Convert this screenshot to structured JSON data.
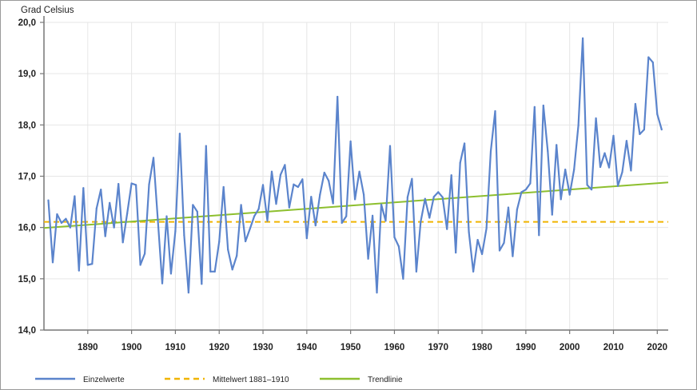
{
  "chart_data": {
    "type": "line",
    "title": "",
    "ylabel": "Grad Celsius",
    "xlabel": "",
    "xlim": [
      1880,
      2022.5
    ],
    "ylim": [
      14,
      20
    ],
    "x_ticks": [
      1890,
      1900,
      1910,
      1920,
      1930,
      1940,
      1950,
      1960,
      1970,
      1980,
      1990,
      2000,
      2010,
      2020
    ],
    "x_tick_labels": [
      "1890",
      "1900",
      "1910",
      "1920",
      "1930",
      "1940",
      "1950",
      "1960",
      "1970",
      "1980",
      "1990",
      "2000",
      "2010",
      "2020"
    ],
    "y_ticks": [
      14,
      15,
      16,
      17,
      18,
      19,
      20
    ],
    "y_tick_labels": [
      "14,0",
      "15,0",
      "16,0",
      "17,0",
      "18,0",
      "19,0",
      "20,0"
    ],
    "grid": true,
    "legend_position": "bottom",
    "series": [
      {
        "name": "Einzelwerte",
        "color": "#5b84cc",
        "style": "solid",
        "x_start": 1881,
        "x_end": 2021,
        "values": [
          16.53,
          15.32,
          16.26,
          16.09,
          16.17,
          16.0,
          16.61,
          15.16,
          16.77,
          15.27,
          15.29,
          16.37,
          16.74,
          15.83,
          16.48,
          16.0,
          16.85,
          15.71,
          16.27,
          16.86,
          16.83,
          15.27,
          15.49,
          16.84,
          17.36,
          16.14,
          14.91,
          16.22,
          15.1,
          15.93,
          17.83,
          15.85,
          14.73,
          16.44,
          16.31,
          14.9,
          17.59,
          15.14,
          15.14,
          15.72,
          16.79,
          15.57,
          15.18,
          15.45,
          16.44,
          15.73,
          15.97,
          16.22,
          16.36,
          16.83,
          16.13,
          17.09,
          16.46,
          17.03,
          17.22,
          16.39,
          16.84,
          16.79,
          16.94,
          15.79,
          16.6,
          16.04,
          16.64,
          17.07,
          16.91,
          16.47,
          18.55,
          16.09,
          16.22,
          17.68,
          16.55,
          17.09,
          16.64,
          15.39,
          16.23,
          14.73,
          16.45,
          16.13,
          17.59,
          15.81,
          15.63,
          15.0,
          16.59,
          16.95,
          15.14,
          16.11,
          16.56,
          16.19,
          16.6,
          16.69,
          16.59,
          15.97,
          17.02,
          15.51,
          17.26,
          17.64,
          15.91,
          15.14,
          15.76,
          15.48,
          15.98,
          17.49,
          18.27,
          15.55,
          15.7,
          16.39,
          15.44,
          16.35,
          16.69,
          16.74,
          16.86,
          18.35,
          15.85,
          18.38,
          17.49,
          16.25,
          17.61,
          16.55,
          17.13,
          16.64,
          17.13,
          17.99,
          19.69,
          16.83,
          16.74,
          18.13,
          17.18,
          17.45,
          17.17,
          17.79,
          16.81,
          17.08,
          17.69,
          17.11,
          18.41,
          17.82,
          17.91,
          19.32,
          19.22,
          18.21,
          17.91
        ]
      },
      {
        "name": "Mittelwert 1881–1910",
        "color": "#f0b400",
        "style": "dashed",
        "value": 16.11
      },
      {
        "name": "Trendlinie",
        "color": "#8dbf2e",
        "style": "solid",
        "x": [
          1880,
          2022.5
        ],
        "values": [
          15.99,
          16.88
        ]
      }
    ]
  }
}
